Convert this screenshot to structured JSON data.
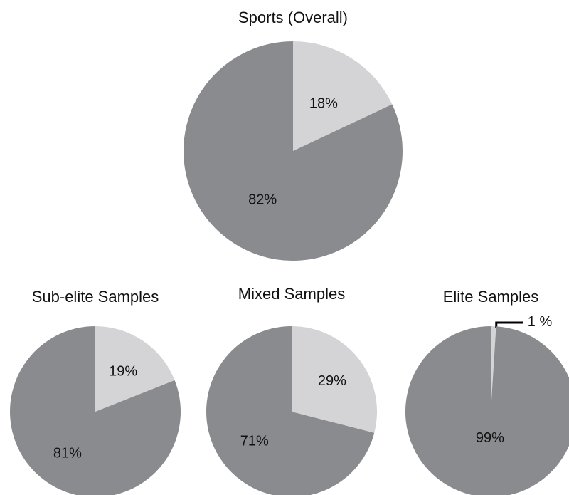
{
  "chart_data": [
    {
      "type": "pie",
      "title": "Sports (Overall)",
      "slices": [
        {
          "label": "18%",
          "value": 18,
          "color": "#d4d4d6"
        },
        {
          "label": "82%",
          "value": 82,
          "color": "#8a8b8e"
        }
      ]
    },
    {
      "type": "pie",
      "title": "Sub-elite Samples",
      "slices": [
        {
          "label": "19%",
          "value": 19,
          "color": "#d4d4d6"
        },
        {
          "label": "81%",
          "value": 81,
          "color": "#8a8b8e"
        }
      ]
    },
    {
      "type": "pie",
      "title": "Mixed Samples",
      "slices": [
        {
          "label": "29%",
          "value": 29,
          "color": "#d4d4d6"
        },
        {
          "label": "71%",
          "value": 71,
          "color": "#8a8b8e"
        }
      ]
    },
    {
      "type": "pie",
      "title": "Elite Samples",
      "slices": [
        {
          "label": "1 %",
          "value": 1,
          "color": "#d4d4d6"
        },
        {
          "label": "99%",
          "value": 99,
          "color": "#8a8b8e"
        }
      ]
    }
  ]
}
